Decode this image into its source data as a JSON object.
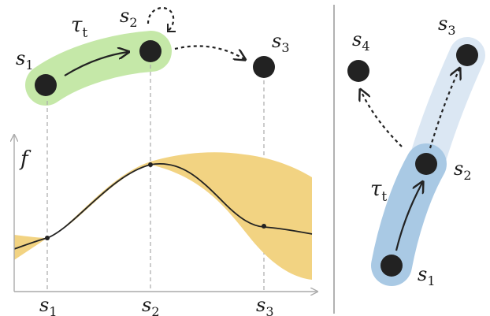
{
  "left_panel": {
    "nodes": [
      {
        "id": "s1",
        "base": "s",
        "sub": "1"
      },
      {
        "id": "s2",
        "base": "s",
        "sub": "2"
      },
      {
        "id": "s3",
        "base": "s",
        "sub": "3"
      }
    ],
    "trajectory_label": {
      "base": "τ",
      "sub": "t"
    },
    "y_axis_label": "f",
    "x_ticks": [
      {
        "base": "s",
        "sub": "1"
      },
      {
        "base": "s",
        "sub": "2"
      },
      {
        "base": "s",
        "sub": "3"
      }
    ]
  },
  "right_panel": {
    "nodes": [
      {
        "id": "s1",
        "base": "s",
        "sub": "1"
      },
      {
        "id": "s2",
        "base": "s",
        "sub": "2"
      },
      {
        "id": "s3",
        "base": "s",
        "sub": "3"
      },
      {
        "id": "s4",
        "base": "s",
        "sub": "4"
      }
    ],
    "trajectory_label": {
      "base": "τ",
      "sub": "t"
    }
  },
  "colors": {
    "green_band": "#c5e8a8",
    "blue_band_dark": "#a9c9e4",
    "blue_band_light": "#dbe7f3",
    "uncertainty": "#f2d382",
    "node": "#222222",
    "axis": "#aaaaaa",
    "divider": "#999999"
  }
}
